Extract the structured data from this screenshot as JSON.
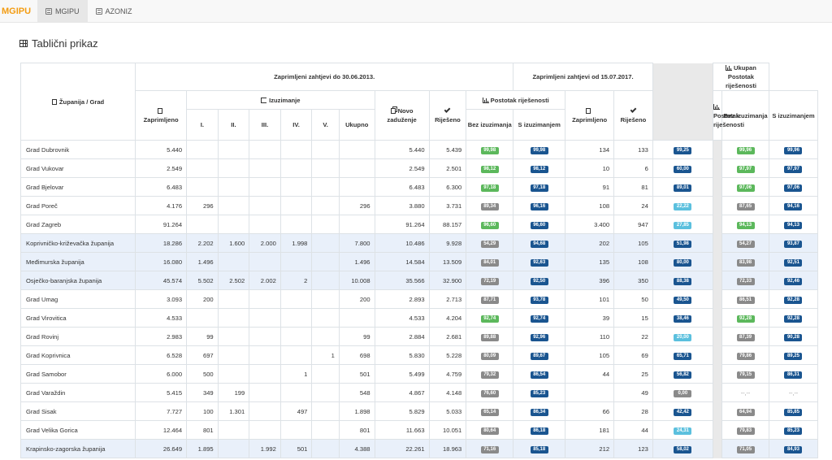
{
  "nav": {
    "brand": "MGIPU",
    "items": [
      {
        "label": "MGIPU"
      },
      {
        "label": "AZONIZ"
      }
    ]
  },
  "page": {
    "title": "Tablični prikaz"
  },
  "header": {
    "county_city": "Županija / Grad",
    "group1": "Zaprimljeni zahtjevi do 30.06.2013.",
    "group2": "Zaprimljeni zahtjevi od 15.07.2017.",
    "group3": "Ukupan Postotak riješenosti",
    "zaprimljeno": "Zaprimljeno",
    "izuzimanje": "Izuzimanje",
    "roman": [
      "I.",
      "II.",
      "III.",
      "IV.",
      "V."
    ],
    "ukupno": "Ukupno",
    "novo_zaduzenje": "Novo zaduženje",
    "rijeseno": "Riješeno",
    "postotak_rijesenosti": "Postotak riješenosti",
    "bez_izuzimanja": "Bez izuzimanja",
    "s_izuzimanjem": "S izuzimanjem",
    "postotak_rijesenosti2": "Postotak riješenosti"
  },
  "colors": {
    "green": "#5cb85c",
    "gray": "#8a8a8a",
    "blue": "#1a5590",
    "light_blue": "#5bc0de",
    "highlight_row": "#e9f0fa",
    "brand": "#f39c12"
  },
  "rows": [
    {
      "name": "Grad Dubrovnik",
      "hl": false,
      "zap": "5.440",
      "i1": "",
      "i2": "",
      "i3": "",
      "i4": "",
      "i5": "",
      "uk": "",
      "novo": "5.440",
      "rij": "5.439",
      "p1": {
        "v": "99,98",
        "c": "green"
      },
      "p2": {
        "v": "99,98",
        "c": "blue"
      },
      "zap2": "134",
      "rij2": "133",
      "p3": {
        "v": "99,25",
        "c": "blue"
      },
      "t1": {
        "v": "99,96",
        "c": "green"
      },
      "t2": {
        "v": "99,96",
        "c": "blue"
      }
    },
    {
      "name": "Grad Vukovar",
      "hl": false,
      "zap": "2.549",
      "i1": "",
      "i2": "",
      "i3": "",
      "i4": "",
      "i5": "",
      "uk": "",
      "novo": "2.549",
      "rij": "2.501",
      "p1": {
        "v": "98,12",
        "c": "green"
      },
      "p2": {
        "v": "98,12",
        "c": "blue"
      },
      "zap2": "10",
      "rij2": "6",
      "p3": {
        "v": "60,00",
        "c": "blue"
      },
      "t1": {
        "v": "97,97",
        "c": "green"
      },
      "t2": {
        "v": "97,97",
        "c": "blue"
      }
    },
    {
      "name": "Grad Bjelovar",
      "hl": false,
      "zap": "6.483",
      "i1": "",
      "i2": "",
      "i3": "",
      "i4": "",
      "i5": "",
      "uk": "",
      "novo": "6.483",
      "rij": "6.300",
      "p1": {
        "v": "97,18",
        "c": "green"
      },
      "p2": {
        "v": "97,18",
        "c": "blue"
      },
      "zap2": "91",
      "rij2": "81",
      "p3": {
        "v": "89,01",
        "c": "blue"
      },
      "t1": {
        "v": "97,06",
        "c": "green"
      },
      "t2": {
        "v": "97,06",
        "c": "blue"
      }
    },
    {
      "name": "Grad Poreč",
      "hl": false,
      "zap": "4.176",
      "i1": "296",
      "i2": "",
      "i3": "",
      "i4": "",
      "i5": "",
      "uk": "296",
      "novo": "3.880",
      "rij": "3.731",
      "p1": {
        "v": "89,34",
        "c": "gray"
      },
      "p2": {
        "v": "96,16",
        "c": "blue"
      },
      "zap2": "108",
      "rij2": "24",
      "p3": {
        "v": "22,22",
        "c": "light"
      },
      "t1": {
        "v": "87,65",
        "c": "gray"
      },
      "t2": {
        "v": "94,16",
        "c": "blue"
      }
    },
    {
      "name": "Grad Zagreb",
      "hl": false,
      "zap": "91.264",
      "i1": "",
      "i2": "",
      "i3": "",
      "i4": "",
      "i5": "",
      "uk": "",
      "novo": "91.264",
      "rij": "88.157",
      "p1": {
        "v": "96,60",
        "c": "green"
      },
      "p2": {
        "v": "96,60",
        "c": "blue"
      },
      "zap2": "3.400",
      "rij2": "947",
      "p3": {
        "v": "27,85",
        "c": "light"
      },
      "t1": {
        "v": "94,13",
        "c": "green"
      },
      "t2": {
        "v": "94,13",
        "c": "blue"
      }
    },
    {
      "name": "Koprivničko-križevačka županija",
      "hl": true,
      "zap": "18.286",
      "i1": "2.202",
      "i2": "1.600",
      "i3": "2.000",
      "i4": "1.998",
      "i5": "",
      "uk": "7.800",
      "novo": "10.486",
      "rij": "9.928",
      "p1": {
        "v": "54,29",
        "c": "gray"
      },
      "p2": {
        "v": "94,68",
        "c": "blue"
      },
      "zap2": "202",
      "rij2": "105",
      "p3": {
        "v": "51,98",
        "c": "blue"
      },
      "t1": {
        "v": "54,27",
        "c": "gray"
      },
      "t2": {
        "v": "93,87",
        "c": "blue"
      }
    },
    {
      "name": "Međimurska županija",
      "hl": true,
      "zap": "16.080",
      "i1": "1.496",
      "i2": "",
      "i3": "",
      "i4": "",
      "i5": "",
      "uk": "1.496",
      "novo": "14.584",
      "rij": "13.509",
      "p1": {
        "v": "84,01",
        "c": "gray"
      },
      "p2": {
        "v": "92,63",
        "c": "blue"
      },
      "zap2": "135",
      "rij2": "108",
      "p3": {
        "v": "80,00",
        "c": "blue"
      },
      "t1": {
        "v": "83,98",
        "c": "gray"
      },
      "t2": {
        "v": "92,51",
        "c": "blue"
      }
    },
    {
      "name": "Osječko-baranjska županija",
      "hl": true,
      "zap": "45.574",
      "i1": "5.502",
      "i2": "2.502",
      "i3": "2.002",
      "i4": "2",
      "i5": "",
      "uk": "10.008",
      "novo": "35.566",
      "rij": "32.900",
      "p1": {
        "v": "72,19",
        "c": "gray"
      },
      "p2": {
        "v": "92,50",
        "c": "blue"
      },
      "zap2": "396",
      "rij2": "350",
      "p3": {
        "v": "88,38",
        "c": "blue"
      },
      "t1": {
        "v": "72,33",
        "c": "gray"
      },
      "t2": {
        "v": "92,46",
        "c": "blue"
      }
    },
    {
      "name": "Grad Umag",
      "hl": false,
      "zap": "3.093",
      "i1": "200",
      "i2": "",
      "i3": "",
      "i4": "",
      "i5": "",
      "uk": "200",
      "novo": "2.893",
      "rij": "2.713",
      "p1": {
        "v": "87,71",
        "c": "gray"
      },
      "p2": {
        "v": "93,78",
        "c": "blue"
      },
      "zap2": "101",
      "rij2": "50",
      "p3": {
        "v": "49,50",
        "c": "blue"
      },
      "t1": {
        "v": "86,51",
        "c": "gray"
      },
      "t2": {
        "v": "92,28",
        "c": "blue"
      }
    },
    {
      "name": "Grad Virovitica",
      "hl": false,
      "zap": "4.533",
      "i1": "",
      "i2": "",
      "i3": "",
      "i4": "",
      "i5": "",
      "uk": "",
      "novo": "4.533",
      "rij": "4.204",
      "p1": {
        "v": "92,74",
        "c": "green"
      },
      "p2": {
        "v": "92,74",
        "c": "blue"
      },
      "zap2": "39",
      "rij2": "15",
      "p3": {
        "v": "38,46",
        "c": "blue"
      },
      "t1": {
        "v": "92,28",
        "c": "green"
      },
      "t2": {
        "v": "92,28",
        "c": "blue"
      }
    },
    {
      "name": "Grad Rovinj",
      "hl": false,
      "zap": "2.983",
      "i1": "99",
      "i2": "",
      "i3": "",
      "i4": "",
      "i5": "",
      "uk": "99",
      "novo": "2.884",
      "rij": "2.681",
      "p1": {
        "v": "89,88",
        "c": "gray"
      },
      "p2": {
        "v": "92,96",
        "c": "blue"
      },
      "zap2": "110",
      "rij2": "22",
      "p3": {
        "v": "20,00",
        "c": "light"
      },
      "t1": {
        "v": "87,39",
        "c": "gray"
      },
      "t2": {
        "v": "90,28",
        "c": "blue"
      }
    },
    {
      "name": "Grad Koprivnica",
      "hl": false,
      "zap": "6.528",
      "i1": "697",
      "i2": "",
      "i3": "",
      "i4": "",
      "i5": "1",
      "uk": "698",
      "novo": "5.830",
      "rij": "5.228",
      "p1": {
        "v": "80,09",
        "c": "gray"
      },
      "p2": {
        "v": "89,67",
        "c": "blue"
      },
      "zap2": "105",
      "rij2": "69",
      "p3": {
        "v": "65,71",
        "c": "blue"
      },
      "t1": {
        "v": "79,86",
        "c": "gray"
      },
      "t2": {
        "v": "89,25",
        "c": "blue"
      }
    },
    {
      "name": "Grad Samobor",
      "hl": false,
      "zap": "6.000",
      "i1": "500",
      "i2": "",
      "i3": "",
      "i4": "1",
      "i5": "",
      "uk": "501",
      "novo": "5.499",
      "rij": "4.759",
      "p1": {
        "v": "79,32",
        "c": "gray"
      },
      "p2": {
        "v": "86,54",
        "c": "blue"
      },
      "zap2": "44",
      "rij2": "25",
      "p3": {
        "v": "56,82",
        "c": "blue"
      },
      "t1": {
        "v": "79,15",
        "c": "gray"
      },
      "t2": {
        "v": "86,31",
        "c": "blue"
      }
    },
    {
      "name": "Grad Varaždin",
      "hl": false,
      "zap": "5.415",
      "i1": "349",
      "i2": "199",
      "i3": "",
      "i4": "",
      "i5": "",
      "uk": "548",
      "novo": "4.867",
      "rij": "4.148",
      "p1": {
        "v": "76,60",
        "c": "gray"
      },
      "p2": {
        "v": "85,23",
        "c": "blue"
      },
      "zap2": "",
      "rij2": "49",
      "p3": {
        "v": "0,00",
        "c": "gray"
      },
      "t1": {
        "v": "--,--",
        "c": "dash"
      },
      "t2": {
        "v": "--,--",
        "c": "dash"
      }
    },
    {
      "name": "Grad Sisak",
      "hl": false,
      "zap": "7.727",
      "i1": "100",
      "i2": "1.301",
      "i3": "",
      "i4": "497",
      "i5": "",
      "uk": "1.898",
      "novo": "5.829",
      "rij": "5.033",
      "p1": {
        "v": "65,14",
        "c": "gray"
      },
      "p2": {
        "v": "86,34",
        "c": "blue"
      },
      "zap2": "66",
      "rij2": "28",
      "p3": {
        "v": "42,42",
        "c": "blue"
      },
      "t1": {
        "v": "64,94",
        "c": "gray"
      },
      "t2": {
        "v": "85,85",
        "c": "blue"
      }
    },
    {
      "name": "Grad Velika Gorica",
      "hl": false,
      "zap": "12.464",
      "i1": "801",
      "i2": "",
      "i3": "",
      "i4": "",
      "i5": "",
      "uk": "801",
      "novo": "11.663",
      "rij": "10.051",
      "p1": {
        "v": "80,64",
        "c": "gray"
      },
      "p2": {
        "v": "86,18",
        "c": "blue"
      },
      "zap2": "181",
      "rij2": "44",
      "p3": {
        "v": "24,31",
        "c": "light"
      },
      "t1": {
        "v": "79,83",
        "c": "gray"
      },
      "t2": {
        "v": "85,23",
        "c": "blue"
      }
    },
    {
      "name": "Krapinsko-zagorska županija",
      "hl": true,
      "zap": "26.649",
      "i1": "1.895",
      "i2": "",
      "i3": "1.992",
      "i4": "501",
      "i5": "",
      "uk": "4.388",
      "novo": "22.261",
      "rij": "18.963",
      "p1": {
        "v": "71,16",
        "c": "gray"
      },
      "p2": {
        "v": "85,18",
        "c": "blue"
      },
      "zap2": "212",
      "rij2": "123",
      "p3": {
        "v": "58,02",
        "c": "blue"
      },
      "t1": {
        "v": "71,05",
        "c": "gray"
      },
      "t2": {
        "v": "84,93",
        "c": "blue"
      }
    }
  ]
}
